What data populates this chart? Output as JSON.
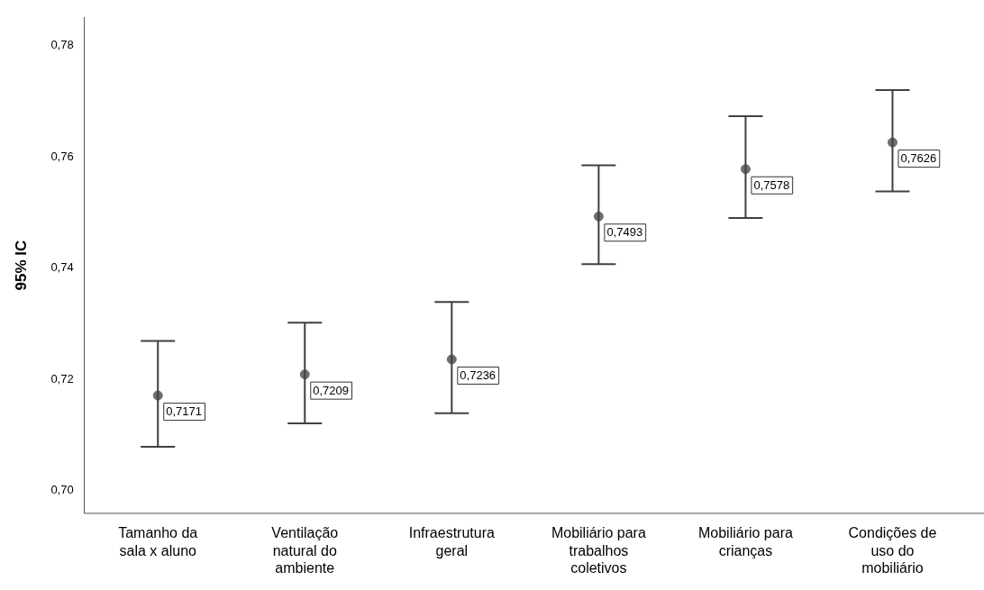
{
  "chart_data": {
    "type": "scatter",
    "ylabel": "95% IC",
    "categories": [
      "Tamanho da sala x aluno",
      "Ventilação natural do ambiente",
      "Infraestrutura geral",
      "Mobiliário para trabalhos coletivos",
      "Mobiliário para crianças",
      "Condições de uso do mobiliário"
    ],
    "values": [
      0.7171,
      0.7209,
      0.7236,
      0.7493,
      0.7578,
      0.7626
    ],
    "errors": [
      [
        0.7079,
        0.7269
      ],
      [
        0.7121,
        0.7302
      ],
      [
        0.7139,
        0.7339
      ],
      [
        0.7407,
        0.7585
      ],
      [
        0.749,
        0.7673
      ],
      [
        0.7538,
        0.772
      ]
    ],
    "value_labels": [
      "0,7171",
      "0,7209",
      "0,7236",
      "0,7493",
      "0,7578",
      "0,7626"
    ],
    "color": "#6e6e6e",
    "marker": "circle",
    "grid": false,
    "legend": false,
    "ylim": [
      0.696,
      0.785
    ],
    "yticks": [
      {
        "value": 0.7,
        "label": "0,70"
      },
      {
        "value": 0.72,
        "label": "0,72"
      },
      {
        "value": 0.74,
        "label": "0,74"
      },
      {
        "value": 0.76,
        "label": "0,76"
      },
      {
        "value": 0.78,
        "label": "0,78"
      }
    ]
  }
}
